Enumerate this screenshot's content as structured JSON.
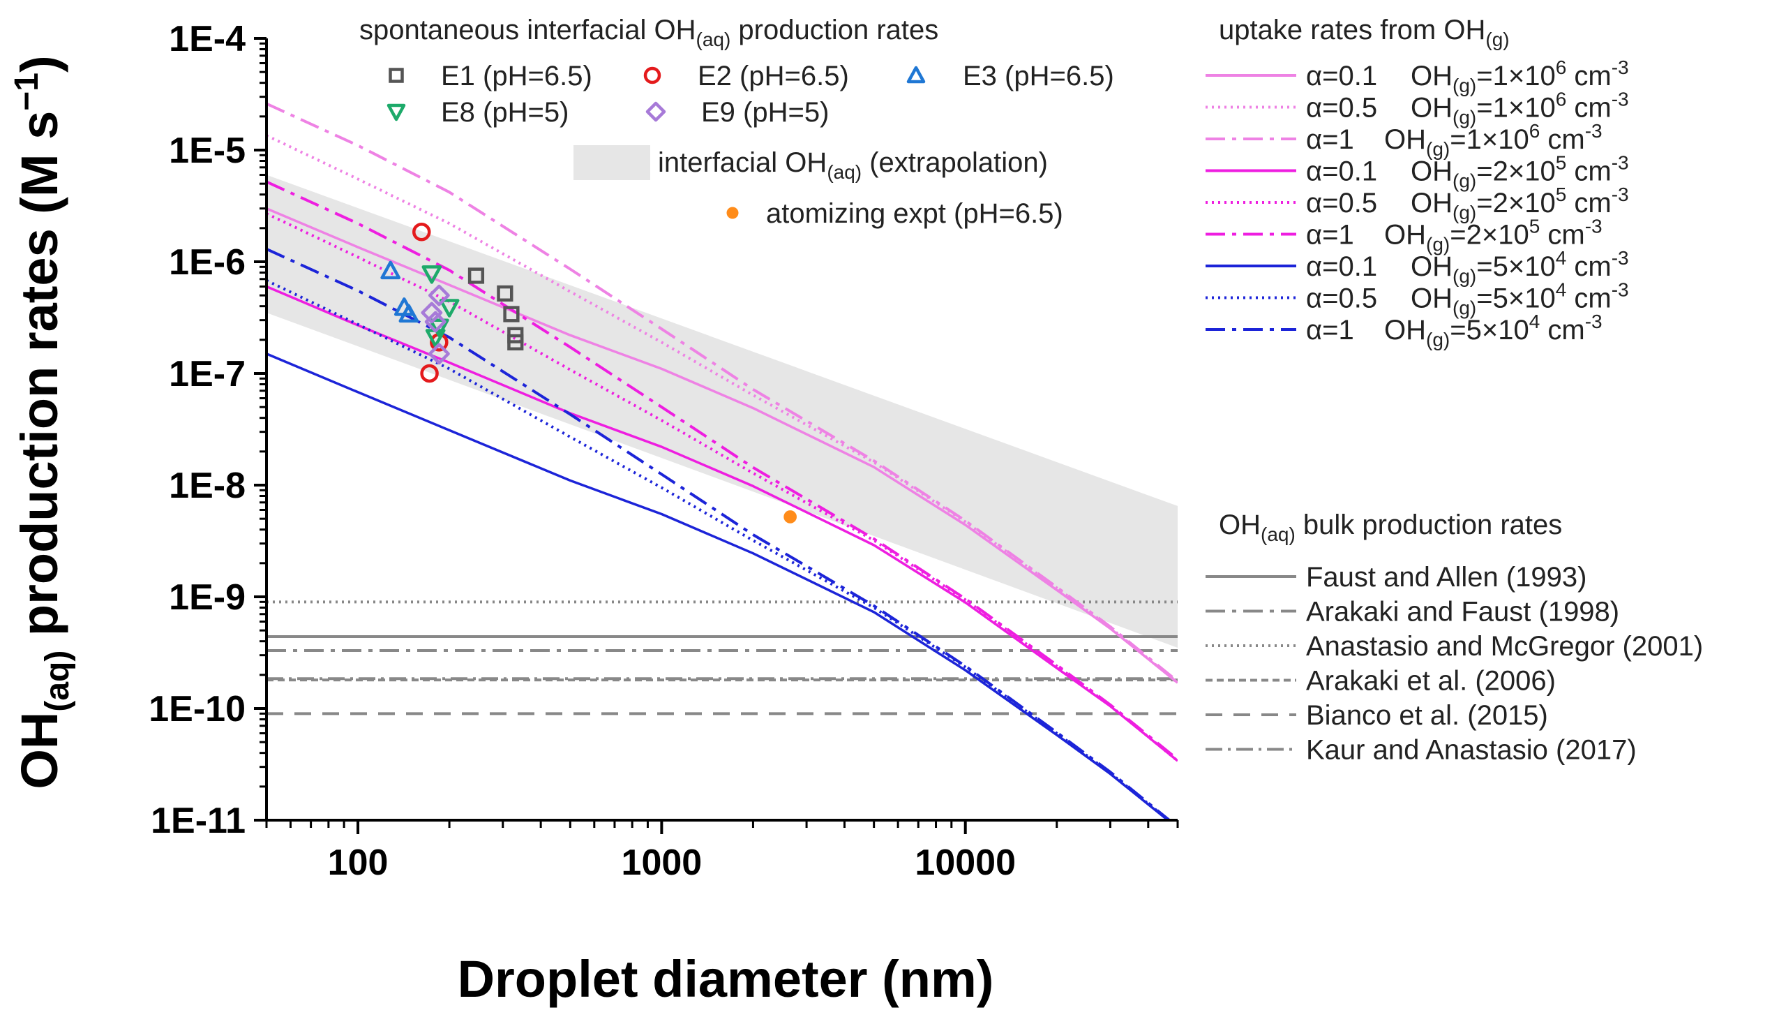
{
  "chart_data": {
    "type": "line",
    "x_scale": "log",
    "y_scale": "log",
    "xlim": [
      50,
      50000
    ],
    "ylim": [
      "1E-11",
      "1E-4"
    ],
    "xlabel": "Droplet diameter (nm)",
    "ylabel_prefix": "OH",
    "ylabel_subscript": "(aq)",
    "ylabel_suffix": " production rates (M s",
    "ylabel_exponent": "−1",
    "ylabel_close": ")",
    "x_ticks": [
      {
        "value": 100,
        "label": "100"
      },
      {
        "value": 1000,
        "label": "1000"
      },
      {
        "value": 10000,
        "label": "10000"
      }
    ],
    "y_ticks": [
      {
        "exp": -4,
        "label": "1E-4"
      },
      {
        "exp": -5,
        "label": "1E-5"
      },
      {
        "exp": -6,
        "label": "1E-6"
      },
      {
        "exp": -7,
        "label": "1E-7"
      },
      {
        "exp": -8,
        "label": "1E-8"
      },
      {
        "exp": -9,
        "label": "1E-9"
      },
      {
        "exp": -10,
        "label": "1E-10"
      },
      {
        "exp": -11,
        "label": "1E-11"
      }
    ],
    "band": {
      "x": [
        50,
        50000
      ],
      "lower": [
        3.5e-07,
        3.5e-10
      ],
      "upper": [
        6e-06,
        6.5e-09
      ]
    },
    "legend_groups": [
      {
        "prefix": "spontaneous interfacial OH",
        "sub": "(aq)",
        "suffix": " production rates"
      },
      {
        "prefix": "uptake rates from OH",
        "sub": "(g)",
        "suffix": ""
      },
      {
        "prefix": "OH",
        "sub": "(aq)",
        "suffix": " bulk production rates"
      }
    ],
    "band_label": {
      "prefix": "interfacial OH",
      "sub": "(aq)",
      "suffix": " (extrapolation)"
    },
    "scatter_series": [
      {
        "name": "E1 (pH=6.5)",
        "marker": "square",
        "color": "#555555",
        "x": [
          245,
          305,
          320,
          330,
          330
        ],
        "y": [
          7.5e-07,
          5.2e-07,
          3.4e-07,
          2.2e-07,
          1.9e-07
        ]
      },
      {
        "name": "E2 (pH=6.5)",
        "marker": "circle",
        "color": "#e41a1c",
        "x": [
          162,
          185,
          172
        ],
        "y": [
          1.85e-06,
          1.9e-07,
          1e-07
        ]
      },
      {
        "name": "E3 (pH=6.5)",
        "marker": "triangle-up",
        "color": "#1f77d4",
        "x": [
          128,
          142,
          147
        ],
        "y": [
          8.3e-07,
          3.9e-07,
          3.4e-07
        ]
      },
      {
        "name": "E8 (pH=5)",
        "marker": "triangle-down",
        "color": "#1daa6a",
        "x": [
          175,
          200,
          185,
          180
        ],
        "y": [
          7.8e-07,
          3.9e-07,
          2.6e-07,
          2.1e-07
        ]
      },
      {
        "name": "E9 (pH=5)",
        "marker": "diamond",
        "color": "#a77ad8",
        "x": [
          185,
          175,
          180,
          185
        ],
        "y": [
          5e-07,
          3.5e-07,
          2.9e-07,
          1.5e-07
        ]
      },
      {
        "name": "atomizing expt (pH=6.5)",
        "marker": "dot",
        "color": "#ff8c1a",
        "x": [
          2650
        ],
        "y": [
          5.2e-09
        ]
      }
    ],
    "uptake_series": [
      {
        "alpha": "α=0.1",
        "oh": "=1×10",
        "exp": "6",
        "unit": " cm",
        "uexp": "-3",
        "color": "#ee82e4",
        "dash": "solid",
        "x": [
          50,
          100,
          200,
          500,
          1000,
          2000,
          5000,
          10000,
          20000,
          30000,
          50000
        ],
        "y": [
          3e-06,
          1.35e-06,
          6.2e-07,
          2.2e-07,
          1.1e-07,
          4.9e-08,
          1.45e-08,
          4.4e-09,
          1.15e-09,
          5.2e-10,
          1.7e-10
        ]
      },
      {
        "alpha": "α=0.5",
        "oh": "=1×10",
        "exp": "6",
        "unit": " cm",
        "uexp": "-3",
        "color": "#ee82e4",
        "dash": "dot",
        "x": [
          50,
          100,
          200,
          500,
          1000,
          2000,
          5000,
          10000,
          20000,
          30000,
          50000
        ],
        "y": [
          1.35e-05,
          5.5e-06,
          2.2e-06,
          5.4e-07,
          1.9e-07,
          6.4e-08,
          1.6e-08,
          4.7e-09,
          1.2e-09,
          5.3e-10,
          1.7e-10
        ]
      },
      {
        "alpha": "α=1",
        "oh": "=1×10",
        "exp": "6",
        "unit": " cm",
        "uexp": "-3",
        "color": "#ee82e4",
        "dash": "dashdot",
        "x": [
          50,
          100,
          200,
          500,
          1000,
          2000,
          5000,
          10000,
          20000,
          30000,
          50000
        ],
        "y": [
          2.6e-05,
          1.1e-05,
          4.2e-06,
          8.6e-07,
          2.5e-07,
          7.2e-08,
          1.65e-08,
          4.8e-09,
          1.22e-09,
          5.4e-10,
          1.75e-10
        ]
      },
      {
        "alpha": "α=0.1",
        "oh": "=2×10",
        "exp": "5",
        "unit": " cm",
        "uexp": "-3",
        "color": "#ee1ee0",
        "dash": "solid",
        "x": [
          50,
          100,
          200,
          500,
          1000,
          2000,
          5000,
          10000,
          20000,
          30000,
          50000
        ],
        "y": [
          6e-07,
          2.7e-07,
          1.25e-07,
          4.4e-08,
          2.2e-08,
          9.8e-09,
          2.9e-09,
          8.9e-10,
          2.3e-10,
          1.05e-10,
          3.4e-11
        ]
      },
      {
        "alpha": "α=0.5",
        "oh": "=2×10",
        "exp": "5",
        "unit": " cm",
        "uexp": "-3",
        "color": "#ee1ee0",
        "dash": "dot",
        "x": [
          50,
          100,
          200,
          500,
          1000,
          2000,
          5000,
          10000,
          20000,
          30000,
          50000
        ],
        "y": [
          2.7e-06,
          1.1e-06,
          4.4e-07,
          1.08e-07,
          3.8e-08,
          1.28e-08,
          3.2e-09,
          9.4e-10,
          2.4e-10,
          1.06e-10,
          3.4e-11
        ]
      },
      {
        "alpha": "α=1",
        "oh": "=2×10",
        "exp": "5",
        "unit": " cm",
        "uexp": "-3",
        "color": "#ee1ee0",
        "dash": "dashdot",
        "x": [
          50,
          100,
          200,
          500,
          1000,
          2000,
          5000,
          10000,
          20000,
          30000,
          50000
        ],
        "y": [
          5.2e-06,
          2.2e-06,
          8.4e-07,
          1.72e-07,
          5e-08,
          1.44e-08,
          3.3e-09,
          9.6e-10,
          2.45e-10,
          1.08e-10,
          3.5e-11
        ]
      },
      {
        "alpha": "α=0.1",
        "oh": "=5×10",
        "exp": "4",
        "unit": " cm",
        "uexp": "-3",
        "color": "#1c24d8",
        "dash": "solid",
        "x": [
          50,
          100,
          200,
          500,
          1000,
          2000,
          5000,
          10000,
          20000,
          30000,
          50000
        ],
        "y": [
          1.5e-07,
          6.8e-08,
          3.1e-08,
          1.1e-08,
          5.5e-09,
          2.45e-09,
          7.3e-10,
          2.2e-10,
          5.8e-11,
          2.6e-11,
          8.5e-12
        ]
      },
      {
        "alpha": "α=0.5",
        "oh": "=5×10",
        "exp": "4",
        "unit": " cm",
        "uexp": "-3",
        "color": "#1c24d8",
        "dash": "dot",
        "x": [
          50,
          100,
          200,
          500,
          1000,
          2000,
          5000,
          10000,
          20000,
          30000,
          50000
        ],
        "y": [
          6.8e-07,
          2.75e-07,
          1.1e-07,
          2.7e-08,
          9.5e-09,
          3.2e-09,
          8e-10,
          2.35e-10,
          6e-11,
          2.65e-11,
          8.6e-12
        ]
      },
      {
        "alpha": "α=1",
        "oh": "=5×10",
        "exp": "4",
        "unit": " cm",
        "uexp": "-3",
        "color": "#1c24d8",
        "dash": "dashdot",
        "x": [
          50,
          100,
          200,
          500,
          1000,
          2000,
          5000,
          10000,
          20000,
          30000,
          50000
        ],
        "y": [
          1.3e-06,
          5.5e-07,
          2.1e-07,
          4.3e-08,
          1.25e-08,
          3.6e-09,
          8.3e-10,
          2.4e-10,
          6.1e-11,
          2.7e-11,
          8.7e-12
        ]
      }
    ],
    "bulk_series": [
      {
        "name": "Faust and Allen (1993)",
        "value": 4.4e-10,
        "dash": "solid"
      },
      {
        "name": "Arakaki and Faust (1998)",
        "value": 3.3e-10,
        "dash": "dashdot"
      },
      {
        "name": "Anastasio and McGregor (2001)",
        "value": 9e-10,
        "dash": "dot"
      },
      {
        "name": "Arakaki et al. (2006)",
        "value": 1.8e-10,
        "dash": "shortdash"
      },
      {
        "name": "Bianco et al. (2015)",
        "value": 9e-11,
        "dash": "dash"
      },
      {
        "name": "Kaur and Anastasio (2017)",
        "value": 1.85e-10,
        "dash": "dashdot2"
      }
    ],
    "colors": {
      "band": "#e6e6e6",
      "bulk": "#888888",
      "axis": "#000000"
    }
  }
}
